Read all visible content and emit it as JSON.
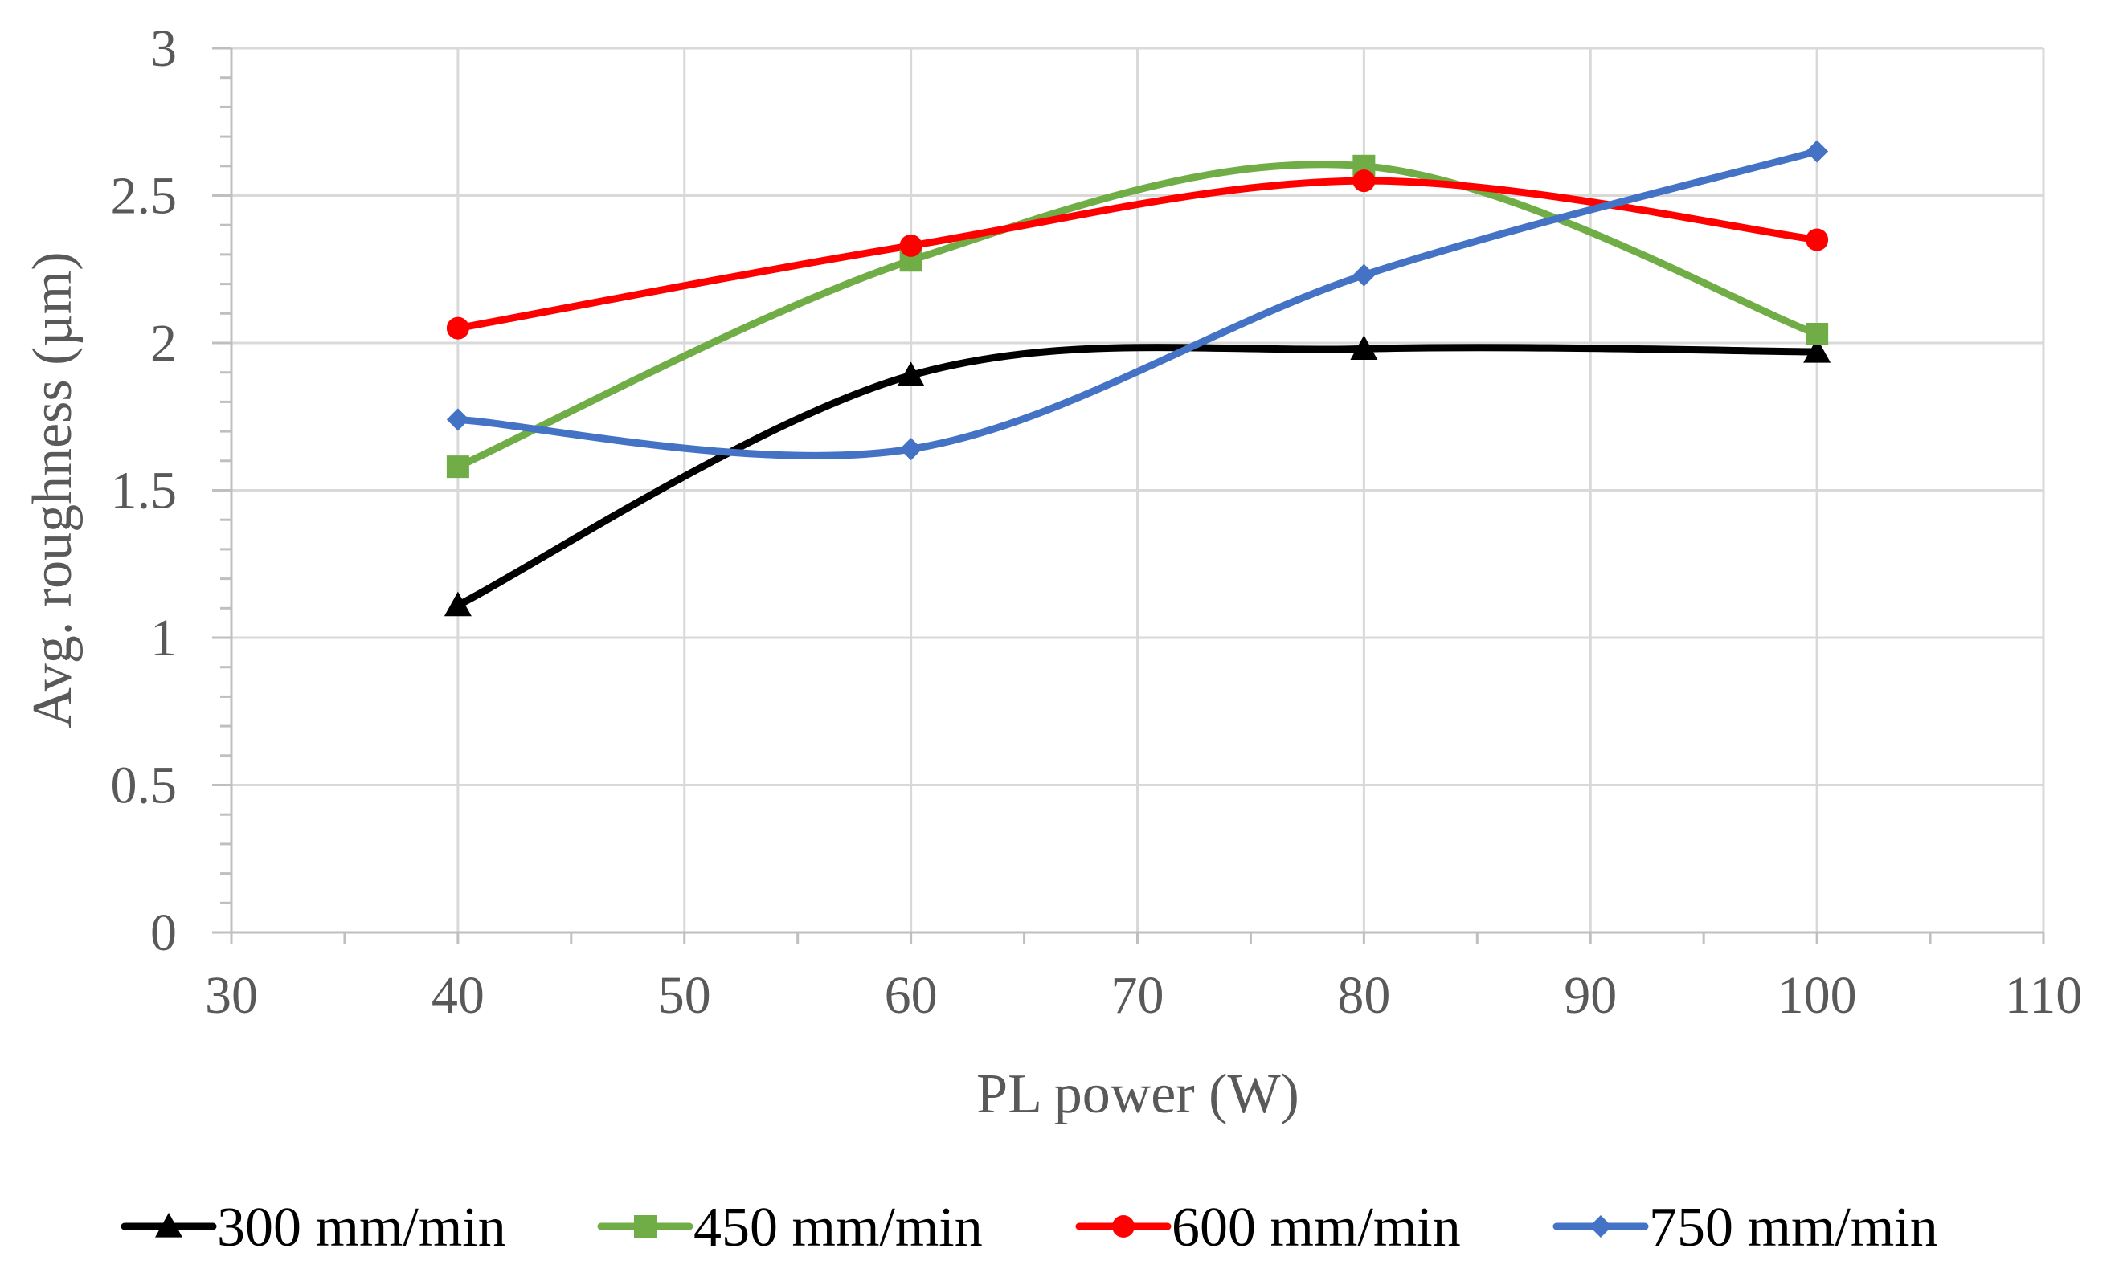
{
  "chart_data": {
    "type": "line",
    "smooth": true,
    "title": "",
    "xlabel": "PL power (W)",
    "ylabel": "Avg. roughness (µm)",
    "xlim": [
      30,
      110
    ],
    "ylim": [
      0,
      3
    ],
    "xticks": [
      30,
      40,
      50,
      60,
      70,
      80,
      90,
      100,
      110
    ],
    "xtick_labels": [
      "30",
      "40",
      "50",
      "60",
      "70",
      "80",
      "90",
      "100",
      "110"
    ],
    "yticks": [
      0,
      0.5,
      1,
      1.5,
      2,
      2.5,
      3
    ],
    "ytick_labels": [
      "0",
      "0.5",
      "1",
      "1.5",
      "2",
      "2.5",
      "3"
    ],
    "grid": true,
    "legend_position": "bottom",
    "x": [
      40,
      60,
      80,
      100
    ],
    "series": [
      {
        "name": "300 mm/min",
        "color": "#000000",
        "marker": "triangle",
        "values": [
          1.11,
          1.89,
          1.98,
          1.97
        ]
      },
      {
        "name": "450 mm/min",
        "color": "#70ad47",
        "marker": "square",
        "values": [
          1.58,
          2.28,
          2.6,
          2.03
        ]
      },
      {
        "name": "600 mm/min",
        "color": "#ff0000",
        "marker": "circle",
        "values": [
          2.05,
          2.33,
          2.55,
          2.35
        ]
      },
      {
        "name": "750 mm/min",
        "color": "#4472c4",
        "marker": "diamond",
        "values": [
          1.74,
          1.64,
          2.23,
          2.65
        ]
      }
    ]
  }
}
